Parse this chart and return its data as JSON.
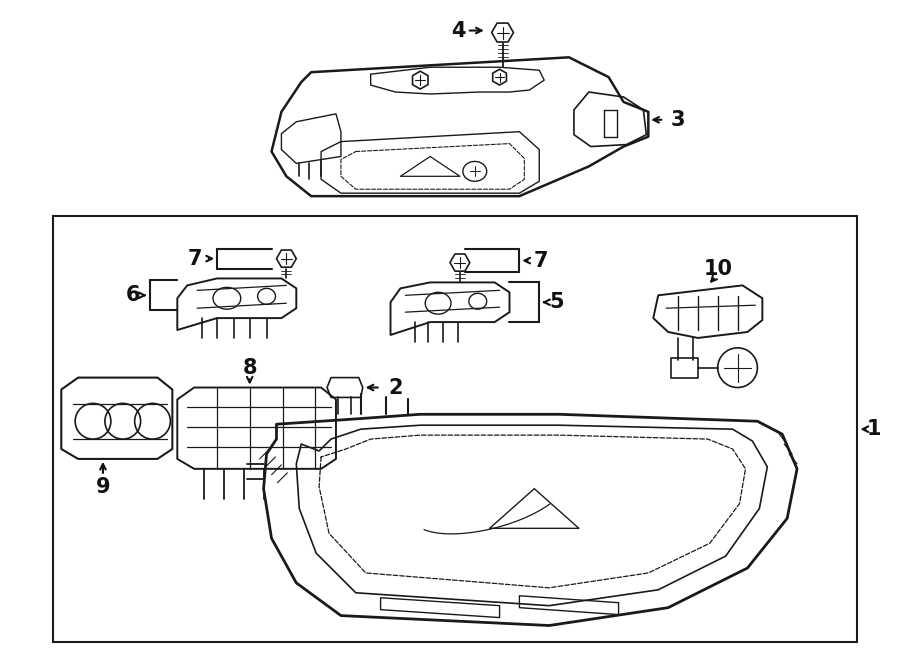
{
  "bg_color": "#ffffff",
  "line_color": "#1a1a1a",
  "text_color": "#111111",
  "figure_width": 9.0,
  "figure_height": 6.62,
  "dpi": 100
}
